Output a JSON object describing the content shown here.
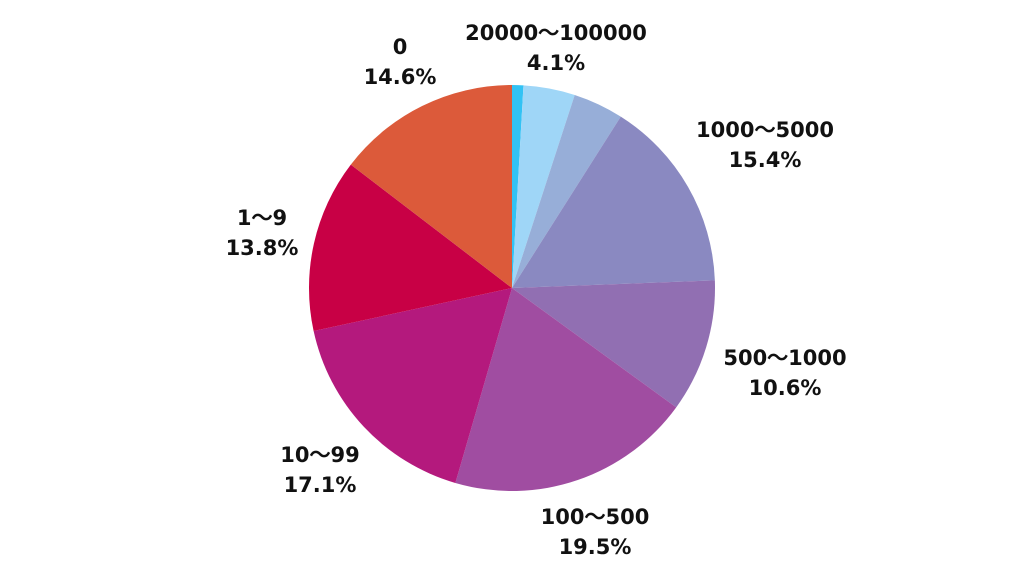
{
  "chart_data": {
    "type": "pie",
    "title": "",
    "start_angle_deg": 0,
    "direction": "clockwise",
    "slices": [
      {
        "label": "",
        "value": 0.9,
        "color": "#32c2f4",
        "pct_text": ""
      },
      {
        "label": "20000〜100000",
        "value": 4.1,
        "color": "#9fd6f7",
        "pct_text": "4.1%"
      },
      {
        "label": "",
        "value": 4.0,
        "color": "#97aed8",
        "pct_text": ""
      },
      {
        "label": "1000〜5000",
        "value": 15.4,
        "color": "#8a89c1",
        "pct_text": "15.4%"
      },
      {
        "label": "500〜1000",
        "value": 10.6,
        "color": "#916fb2",
        "pct_text": "10.6%"
      },
      {
        "label": "100〜500",
        "value": 19.5,
        "color": "#a04da1",
        "pct_text": "19.5%"
      },
      {
        "label": "10〜99",
        "value": 17.1,
        "color": "#b4197d",
        "pct_text": "17.1%"
      },
      {
        "label": "1〜9",
        "value": 13.8,
        "color": "#c80045",
        "pct_text": "13.8%"
      },
      {
        "label": "0",
        "value": 14.6,
        "color": "#dc5a3a",
        "pct_text": "14.6%"
      }
    ]
  }
}
